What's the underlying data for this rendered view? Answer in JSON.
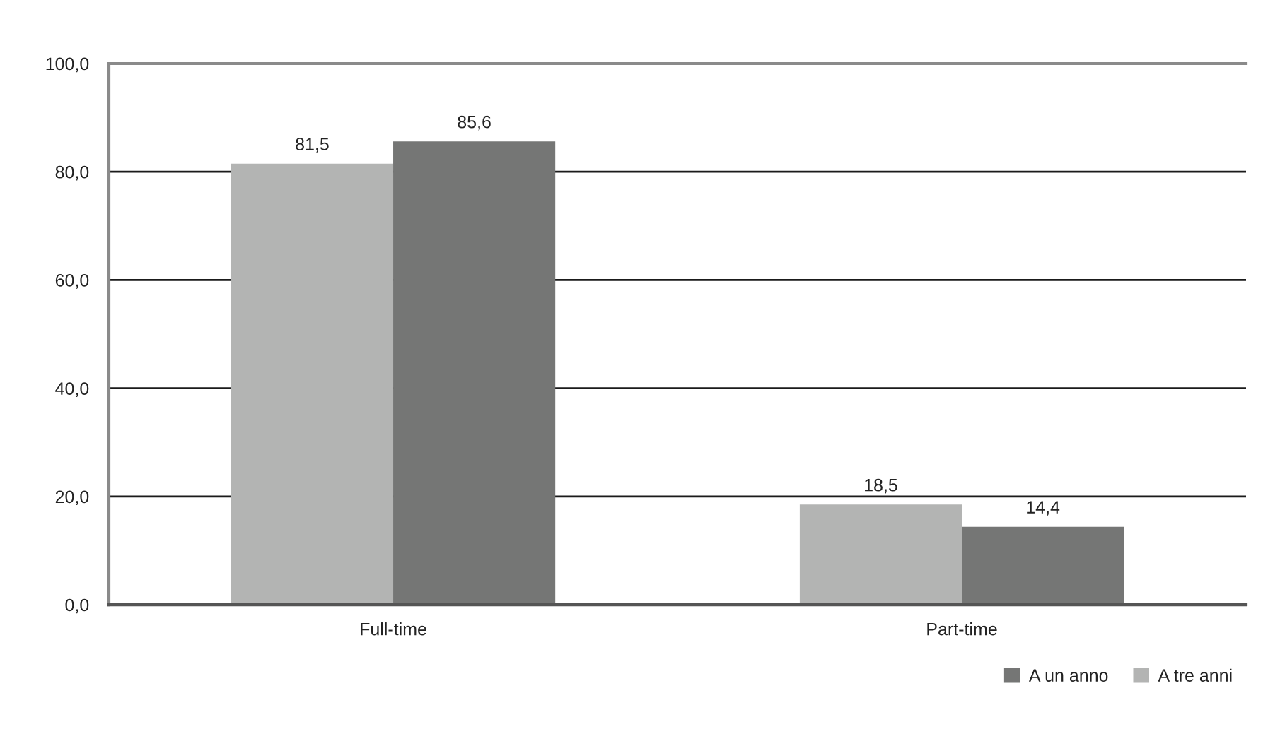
{
  "chart_data": {
    "type": "bar",
    "categories": [
      "Full-time",
      "Part-time"
    ],
    "series": [
      {
        "name": "A tre anni",
        "color": "#b3b4b3",
        "values": [
          81.5,
          18.5
        ],
        "value_labels": [
          "81,5",
          "18,5"
        ]
      },
      {
        "name": "A un anno",
        "color": "#757675",
        "values": [
          85.6,
          14.4
        ],
        "value_labels": [
          "85,6",
          "14,4"
        ]
      }
    ],
    "ylim": [
      0,
      100
    ],
    "yticks": [
      {
        "value": 0,
        "label": "0,0"
      },
      {
        "value": 20,
        "label": "20,0"
      },
      {
        "value": 40,
        "label": "40,0"
      },
      {
        "value": 60,
        "label": "60,0"
      },
      {
        "value": 80,
        "label": "80,0"
      },
      {
        "value": 100,
        "label": "100,0"
      }
    ],
    "grid": "y",
    "legend": "bottom right"
  }
}
